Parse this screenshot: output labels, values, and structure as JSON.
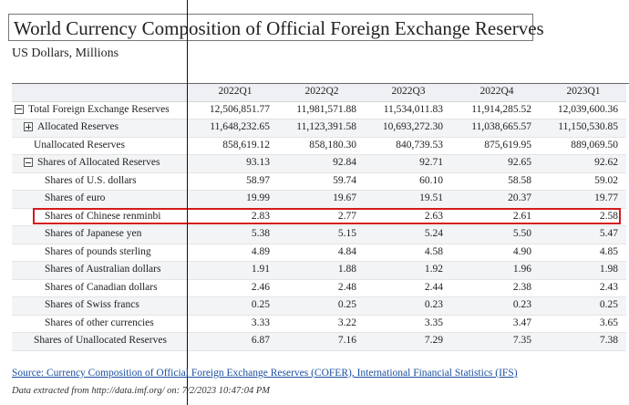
{
  "title": "World Currency Composition of Official Foreign Exchange Reserves",
  "subtitle": "US Dollars, Millions",
  "columns": [
    "2022Q1",
    "2022Q2",
    "2022Q3",
    "2022Q4",
    "2023Q1"
  ],
  "rows": [
    {
      "label": "Total Foreign Exchange Reserves",
      "toggle": "minus",
      "values": [
        "12,506,851.77",
        "11,981,571.88",
        "11,534,011.83",
        "11,914,285.52",
        "12,039,600.36"
      ]
    },
    {
      "label": "Allocated Reserves",
      "toggle": "plus",
      "values": [
        "11,648,232.65",
        "11,123,391.58",
        "10,693,272.30",
        "11,038,665.57",
        "11,150,530.85"
      ]
    },
    {
      "label": "Unallocated Reserves",
      "toggle": "",
      "values": [
        "858,619.12",
        "858,180.30",
        "840,739.53",
        "875,619.95",
        "889,069.50"
      ]
    },
    {
      "label": "Shares of Allocated Reserves",
      "toggle": "minus",
      "values": [
        "93.13",
        "92.84",
        "92.71",
        "92.65",
        "92.62"
      ]
    },
    {
      "label": "Shares of U.S. dollars",
      "toggle": "",
      "values": [
        "58.97",
        "59.74",
        "60.10",
        "58.58",
        "59.02"
      ]
    },
    {
      "label": "Shares of euro",
      "toggle": "",
      "values": [
        "19.99",
        "19.67",
        "19.51",
        "20.37",
        "19.77"
      ]
    },
    {
      "label": "Shares of Chinese renminbi",
      "toggle": "",
      "values": [
        "2.83",
        "2.77",
        "2.63",
        "2.61",
        "2.58"
      ]
    },
    {
      "label": "Shares of Japanese yen",
      "toggle": "",
      "values": [
        "5.38",
        "5.15",
        "5.24",
        "5.50",
        "5.47"
      ]
    },
    {
      "label": "Shares of pounds sterling",
      "toggle": "",
      "values": [
        "4.89",
        "4.84",
        "4.58",
        "4.90",
        "4.85"
      ]
    },
    {
      "label": "Shares of Australian dollars",
      "toggle": "",
      "values": [
        "1.91",
        "1.88",
        "1.92",
        "1.96",
        "1.98"
      ]
    },
    {
      "label": "Shares of Canadian dollars",
      "toggle": "",
      "values": [
        "2.46",
        "2.48",
        "2.44",
        "2.38",
        "2.43"
      ]
    },
    {
      "label": "Shares of Swiss francs",
      "toggle": "",
      "values": [
        "0.25",
        "0.25",
        "0.23",
        "0.23",
        "0.25"
      ]
    },
    {
      "label": "Shares of other currencies",
      "toggle": "",
      "values": [
        "3.33",
        "3.22",
        "3.35",
        "3.47",
        "3.65"
      ]
    },
    {
      "label": "Shares of Unallocated Reserves",
      "toggle": "",
      "values": [
        "6.87",
        "7.16",
        "7.29",
        "7.35",
        "7.38"
      ]
    }
  ],
  "source_text": "Source: Currency Composition of Official Foreign Exchange Reserves (COFER), International Financial Statistics (IFS)",
  "extracted_text": "Data extracted from http://data.imf.org/ on: 7/2/2023 10:47:04 PM",
  "colors": {
    "highlight": "#d61a1a",
    "link": "#1a4fa0",
    "header_bg": "#eef0f3",
    "alt_row_bg": "#f3f4f6"
  }
}
